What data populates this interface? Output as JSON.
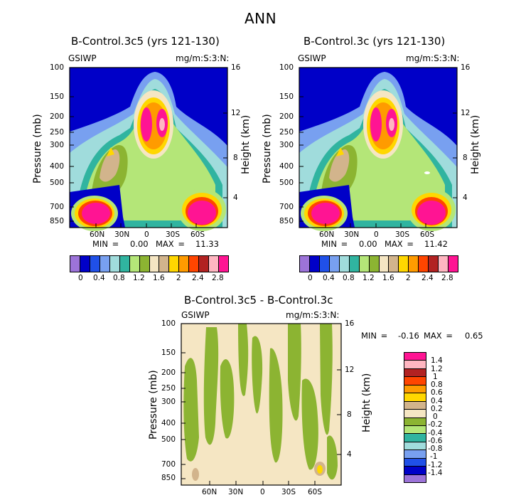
{
  "title": "ANN",
  "colors": [
    "#9c73d9",
    "#0000c8",
    "#2050e8",
    "#78a0f0",
    "#a0dcdc",
    "#30b4a0",
    "#b4e678",
    "#8cb432",
    "#f5e6c3",
    "#d2b48c",
    "#ffd700",
    "#ff9b00",
    "#ff4500",
    "#b22222",
    "#ffb6c1",
    "#ff1493"
  ],
  "chart_data": [
    {
      "type": "heatmap",
      "title": "B-Control.3c5 (yrs 121-130)",
      "left_label": "GSIWP",
      "right_label": "mg/m:S:3:N:",
      "ylabel": "Pressure (mb)",
      "ylabel_right": "Height (km)",
      "y_ticks": [
        "100",
        "150",
        "200",
        "250",
        "300",
        "400",
        "500",
        "700",
        "850"
      ],
      "y_right_ticks": [
        "16",
        "12",
        "8",
        "4"
      ],
      "x_ticks": [
        "60N",
        "30N",
        "0",
        "30S",
        "60S"
      ],
      "min_label": "MIN =",
      "min_value": "0.00",
      "max_label": "MAX =",
      "max_value": "11.33",
      "colorbar_labels": [
        "0",
        "0.4",
        "0.8",
        "1.2",
        "1.6",
        "2",
        "2.4",
        "2.8"
      ]
    },
    {
      "type": "heatmap",
      "title": "B-Control.3c (yrs 121-130)",
      "left_label": "GSIWP",
      "right_label": "mg/m:S:3:N:",
      "ylabel": "Pressure (mb)",
      "ylabel_right": "Height (km)",
      "y_ticks": [
        "100",
        "150",
        "200",
        "250",
        "300",
        "400",
        "500",
        "700",
        "850"
      ],
      "y_right_ticks": [
        "16",
        "12",
        "8",
        "4"
      ],
      "x_ticks": [
        "60N",
        "30N",
        "0",
        "30S",
        "60S"
      ],
      "min_label": "MIN =",
      "min_value": "0.00",
      "max_label": "MAX =",
      "max_value": "11.42",
      "colorbar_labels": [
        "0",
        "0.4",
        "0.8",
        "1.2",
        "1.6",
        "2",
        "2.4",
        "2.8"
      ]
    },
    {
      "type": "heatmap",
      "title": "B-Control.3c5 - B-Control.3c",
      "left_label": "GSIWP",
      "right_label": "mg/m:S:3:N:",
      "ylabel": "Pressure (mb)",
      "ylabel_right": "Height (km)",
      "y_ticks": [
        "100",
        "150",
        "200",
        "250",
        "300",
        "400",
        "500",
        "700",
        "850"
      ],
      "y_right_ticks": [
        "16",
        "12",
        "8",
        "4"
      ],
      "x_ticks": [
        "60N",
        "30N",
        "0",
        "30S",
        "60S"
      ],
      "min_label": "MIN =",
      "min_value": "-0.16",
      "max_label": "MAX =",
      "max_value": "0.65",
      "colorbar_labels": [
        "1.4",
        "1.2",
        "1",
        "0.8",
        "0.6",
        "0.4",
        "0.2",
        "0",
        "-0.2",
        "-0.4",
        "-0.6",
        "-0.8",
        "-1",
        "-1.2",
        "-1.4"
      ]
    }
  ]
}
